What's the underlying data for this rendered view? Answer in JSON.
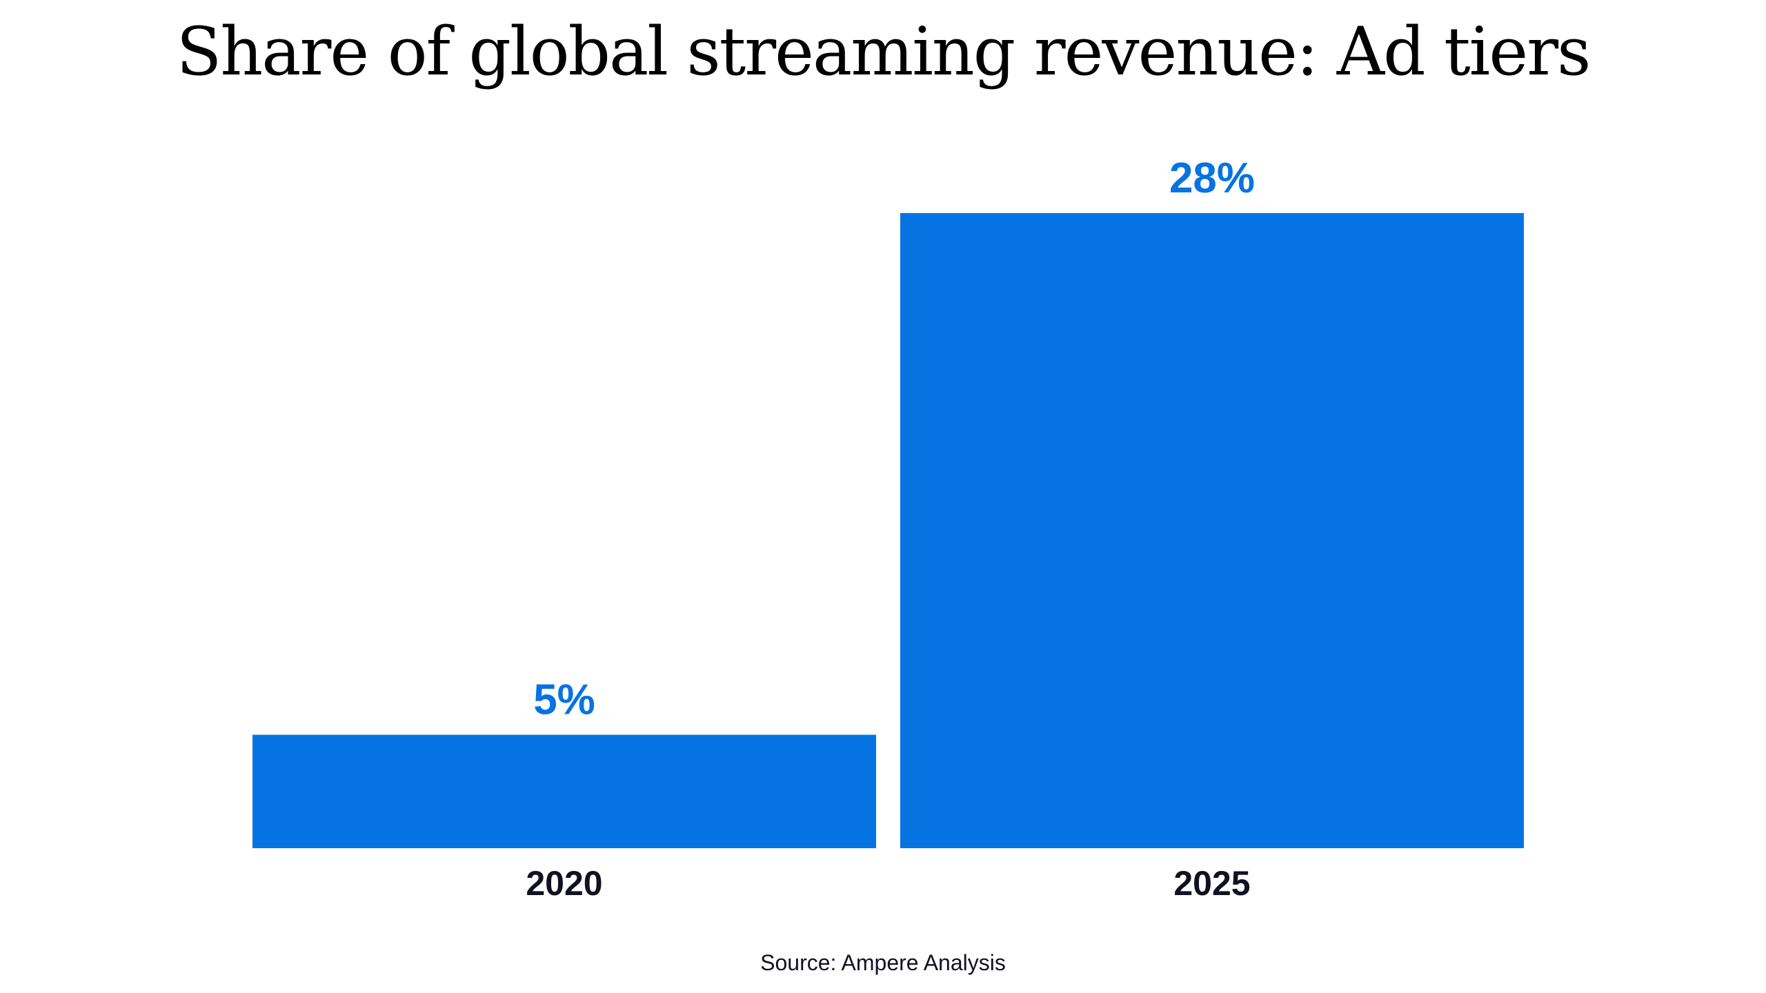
{
  "chart_data": {
    "type": "bar",
    "title": "Share of global streaming revenue: Ad tiers",
    "categories": [
      "2020",
      "2025"
    ],
    "series": [
      {
        "values": [
          5,
          28
        ]
      }
    ],
    "data_labels": [
      "5%",
      "28%"
    ],
    "unit": "%",
    "ylim": [
      0,
      28
    ],
    "grid": false,
    "legend": "none",
    "bar_color": "#0673e3",
    "label_color": "#0673e3"
  },
  "source": "Source: Ampere Analysis"
}
